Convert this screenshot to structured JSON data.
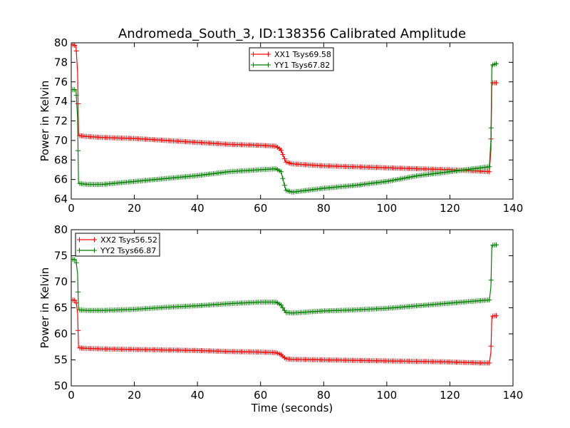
{
  "chart_data": {
    "title": "Andromeda_South_3, ID:138356 Calibrated Amplitude",
    "panels": [
      {
        "type": "line",
        "xlabel": "",
        "ylabel": "Power in Kelvin",
        "xlim": [
          0,
          140
        ],
        "ylim": [
          64,
          80
        ],
        "xticks": [
          0,
          20,
          40,
          60,
          80,
          100,
          120,
          140
        ],
        "yticks": [
          64,
          66,
          68,
          70,
          72,
          74,
          76,
          78,
          80
        ],
        "grid": false,
        "legend_position": "top-center",
        "series": [
          {
            "name": "XX1 Tsys69.58",
            "color": "#ff0000",
            "points": [
              [
                0.5,
                79.8
              ],
              [
                1.5,
                79.7
              ],
              [
                2.0,
                77.0
              ],
              [
                2.3,
                70.5
              ],
              [
                5,
                70.4
              ],
              [
                10,
                70.3
              ],
              [
                20,
                70.2
              ],
              [
                30,
                70.0
              ],
              [
                40,
                69.8
              ],
              [
                50,
                69.6
              ],
              [
                60,
                69.5
              ],
              [
                65,
                69.4
              ],
              [
                66.5,
                69.0
              ],
              [
                68,
                67.8
              ],
              [
                70,
                67.6
              ],
              [
                80,
                67.4
              ],
              [
                90,
                67.3
              ],
              [
                100,
                67.2
              ],
              [
                110,
                67.1
              ],
              [
                120,
                67.0
              ],
              [
                130,
                66.85
              ],
              [
                132.5,
                66.8
              ],
              [
                133.0,
                69.0
              ],
              [
                133.3,
                75.9
              ],
              [
                135,
                75.9
              ]
            ]
          },
          {
            "name": "YY1 Tsys67.82",
            "color": "#008000",
            "points": [
              [
                0.5,
                75.2
              ],
              [
                1.5,
                75.2
              ],
              [
                2.0,
                72.3
              ],
              [
                2.3,
                65.6
              ],
              [
                5,
                65.5
              ],
              [
                10,
                65.5
              ],
              [
                20,
                65.8
              ],
              [
                30,
                66.1
              ],
              [
                40,
                66.4
              ],
              [
                50,
                66.8
              ],
              [
                60,
                67.0
              ],
              [
                65,
                67.1
              ],
              [
                66.5,
                66.8
              ],
              [
                68,
                64.9
              ],
              [
                70,
                64.7
              ],
              [
                80,
                65.1
              ],
              [
                90,
                65.4
              ],
              [
                100,
                65.8
              ],
              [
                110,
                66.4
              ],
              [
                120,
                66.8
              ],
              [
                130,
                67.2
              ],
              [
                132.5,
                67.3
              ],
              [
                133.0,
                70.0
              ],
              [
                133.3,
                77.7
              ],
              [
                135,
                77.9
              ]
            ]
          }
        ]
      },
      {
        "type": "line",
        "xlabel": "Time (seconds)",
        "ylabel": "Power in Kelvin",
        "xlim": [
          0,
          140
        ],
        "ylim": [
          50,
          80
        ],
        "xticks": [
          0,
          20,
          40,
          60,
          80,
          100,
          120,
          140
        ],
        "yticks": [
          50,
          55,
          60,
          65,
          70,
          75,
          80
        ],
        "grid": false,
        "legend_position": "top-left",
        "series": [
          {
            "name": "XX2 Tsys56.52",
            "color": "#ff0000",
            "points": [
              [
                0.5,
                66.5
              ],
              [
                1.5,
                66.4
              ],
              [
                2.0,
                64.0
              ],
              [
                2.3,
                57.3
              ],
              [
                5,
                57.2
              ],
              [
                10,
                57.1
              ],
              [
                20,
                57.0
              ],
              [
                30,
                56.9
              ],
              [
                40,
                56.8
              ],
              [
                50,
                56.6
              ],
              [
                60,
                56.5
              ],
              [
                65,
                56.4
              ],
              [
                66.5,
                56.0
              ],
              [
                68,
                55.2
              ],
              [
                70,
                55.1
              ],
              [
                80,
                55.0
              ],
              [
                90,
                54.9
              ],
              [
                100,
                54.8
              ],
              [
                110,
                54.7
              ],
              [
                120,
                54.6
              ],
              [
                130,
                54.4
              ],
              [
                132.5,
                54.4
              ],
              [
                133.0,
                56.5
              ],
              [
                133.3,
                63.4
              ],
              [
                135,
                63.5
              ]
            ]
          },
          {
            "name": "YY2 Tsys66.87",
            "color": "#008000",
            "points": [
              [
                0.5,
                74.3
              ],
              [
                1.5,
                74.2
              ],
              [
                2.0,
                71.5
              ],
              [
                2.3,
                64.6
              ],
              [
                5,
                64.5
              ],
              [
                10,
                64.5
              ],
              [
                20,
                64.7
              ],
              [
                30,
                65.1
              ],
              [
                40,
                65.4
              ],
              [
                50,
                65.8
              ],
              [
                60,
                66.1
              ],
              [
                65,
                66.1
              ],
              [
                66.5,
                65.5
              ],
              [
                68,
                64.1
              ],
              [
                70,
                64.0
              ],
              [
                80,
                64.4
              ],
              [
                90,
                64.6
              ],
              [
                100,
                64.9
              ],
              [
                110,
                65.4
              ],
              [
                120,
                65.9
              ],
              [
                130,
                66.4
              ],
              [
                132.5,
                66.5
              ],
              [
                133.0,
                69.0
              ],
              [
                133.3,
                77.0
              ],
              [
                135,
                77.1
              ]
            ]
          }
        ]
      }
    ]
  }
}
